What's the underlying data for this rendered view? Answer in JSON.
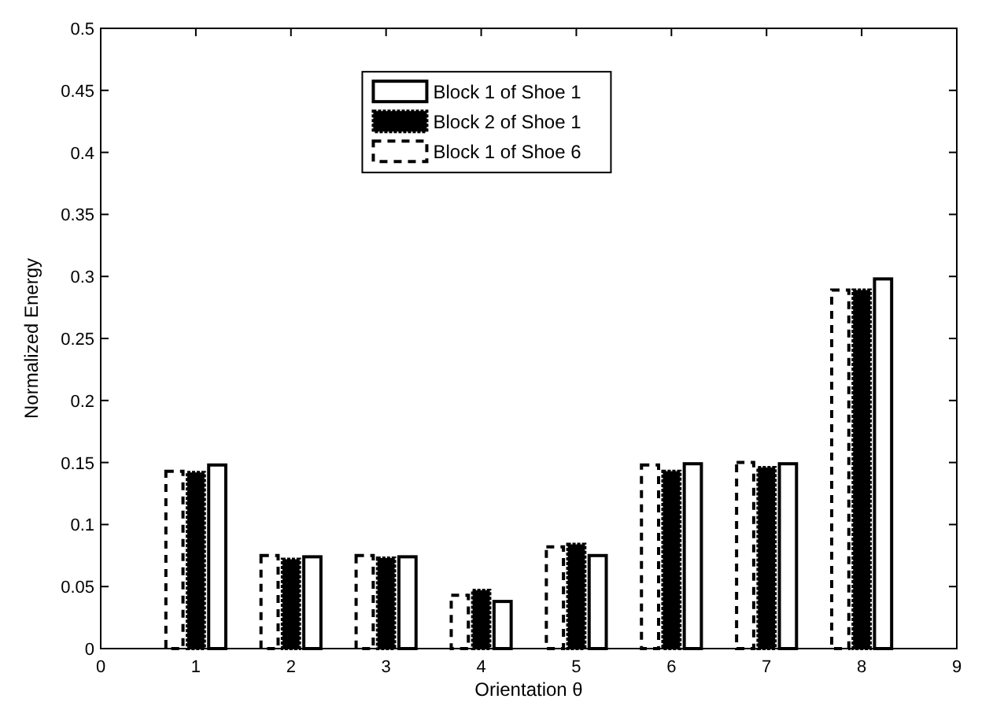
{
  "chart_data": {
    "type": "bar",
    "xlabel": "Orientation θ",
    "ylabel": "Normalized Energy",
    "x": [
      1,
      2,
      3,
      4,
      5,
      6,
      7,
      8
    ],
    "series": [
      {
        "name": "Block 1 of Shoe 6",
        "color": "#ffffff",
        "line_style": "dashed",
        "values": [
          0.143,
          0.075,
          0.075,
          0.043,
          0.082,
          0.148,
          0.15,
          0.289
        ]
      },
      {
        "name": "Block 2 of Shoe 1",
        "color": "#000000",
        "line_style": "dotted",
        "values": [
          0.142,
          0.072,
          0.073,
          0.047,
          0.084,
          0.143,
          0.146,
          0.289
        ]
      },
      {
        "name": "Block 1 of Shoe 1",
        "color": "#ffffff",
        "line_style": "solid",
        "values": [
          0.148,
          0.074,
          0.074,
          0.038,
          0.075,
          0.149,
          0.149,
          0.298
        ]
      }
    ],
    "xlim": [
      0,
      9
    ],
    "xticks": [
      0,
      1,
      2,
      3,
      4,
      5,
      6,
      7,
      8,
      9
    ],
    "ylim": [
      0,
      0.5
    ],
    "yticks": [
      0,
      0.05,
      0.1,
      0.15,
      0.2,
      0.25,
      0.3,
      0.35,
      0.4,
      0.45,
      0.5
    ],
    "grid": false,
    "legend": "top"
  }
}
